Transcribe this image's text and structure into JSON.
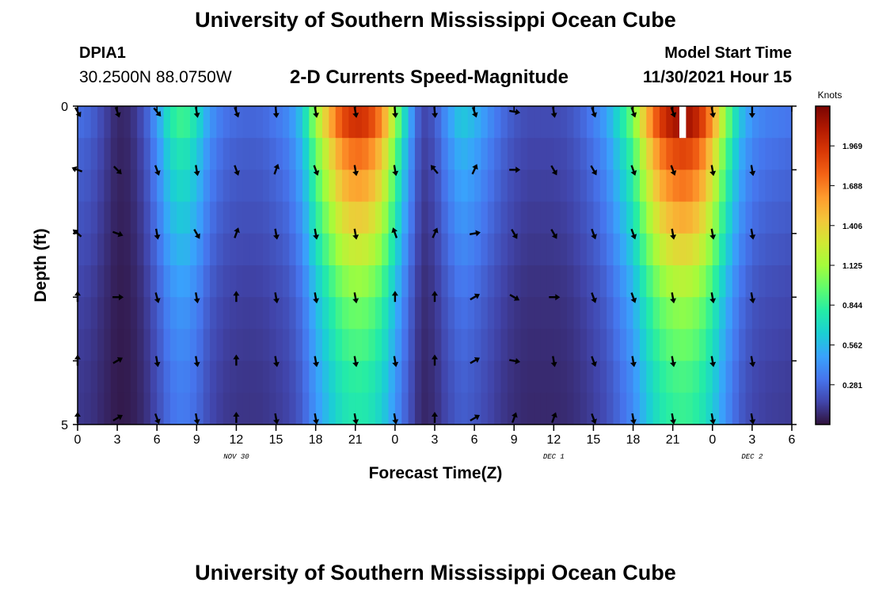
{
  "header": {
    "title": "University of Southern Mississippi Ocean Cube",
    "station_id": "DPIA1",
    "coordinates": "30.2500N  88.0750W",
    "product": "2-D Currents Speed-Magnitude",
    "model_start_label": "Model Start Time",
    "model_start_value": "11/30/2021 Hour 15"
  },
  "footer": {
    "title": "University of Southern Mississippi Ocean Cube"
  },
  "colors": {
    "scale": [
      "#30123b",
      "#4145ab",
      "#4675ed",
      "#39a2fc",
      "#1bcfd4",
      "#24eca6",
      "#61fc6c",
      "#a4fc3b",
      "#d1e834",
      "#f3c63a",
      "#fe9b2d",
      "#f36315",
      "#d93806",
      "#b11901",
      "#7a0402"
    ],
    "arrow": "#000000",
    "missing": "#ffffff"
  },
  "chart_data": {
    "type": "heatmap",
    "title": "2-D Currents Speed-Magnitude",
    "xlabel": "Forecast Time(Z)",
    "ylabel": "Depth (ft)",
    "x_tick_labels": [
      "0",
      "3",
      "6",
      "9",
      "12",
      "15",
      "18",
      "21",
      "0",
      "3",
      "6",
      "9",
      "12",
      "15",
      "18",
      "21",
      "0",
      "3",
      "6"
    ],
    "x_range_hours": [
      0,
      54
    ],
    "date_labels": [
      {
        "text": "NOV 30",
        "hour": 12
      },
      {
        "text": "DEC 1",
        "hour": 36
      },
      {
        "text": "DEC 2",
        "hour": 51
      }
    ],
    "y_tick_labels": [
      "0",
      "5"
    ],
    "y_range": [
      0,
      5
    ],
    "depth_layers": 5,
    "colorbar": {
      "title": "Knots",
      "labels": [
        "0.281",
        "0.562",
        "0.844",
        "1.125",
        "1.406",
        "1.688",
        "1.969"
      ],
      "range": [
        0,
        2.25
      ]
    },
    "speed_profile": [
      [
        0,
        0.3
      ],
      [
        1,
        0.26
      ],
      [
        2,
        0.16
      ],
      [
        3,
        0.06
      ],
      [
        4,
        0.08
      ],
      [
        5,
        0.2
      ],
      [
        6,
        0.45
      ],
      [
        7,
        0.78
      ],
      [
        8,
        0.88
      ],
      [
        9,
        0.72
      ],
      [
        10,
        0.44
      ],
      [
        11,
        0.32
      ],
      [
        12,
        0.28
      ],
      [
        13,
        0.27
      ],
      [
        14,
        0.28
      ],
      [
        15,
        0.33
      ],
      [
        16,
        0.4
      ],
      [
        17,
        0.62
      ],
      [
        18,
        1.1
      ],
      [
        19,
        1.5
      ],
      [
        20,
        1.85
      ],
      [
        21,
        1.98
      ],
      [
        22,
        1.92
      ],
      [
        23,
        1.65
      ],
      [
        24,
        1.1
      ],
      [
        25,
        0.55
      ],
      [
        26,
        0.15
      ],
      [
        27,
        0.22
      ],
      [
        28,
        0.45
      ],
      [
        29,
        0.62
      ],
      [
        30,
        0.55
      ],
      [
        31,
        0.42
      ],
      [
        32,
        0.3
      ],
      [
        33,
        0.22
      ],
      [
        34,
        0.18
      ],
      [
        35,
        0.18
      ],
      [
        36,
        0.18
      ],
      [
        37,
        0.2
      ],
      [
        38,
        0.26
      ],
      [
        39,
        0.35
      ],
      [
        40,
        0.48
      ],
      [
        41,
        0.72
      ],
      [
        42,
        1.0
      ],
      [
        43,
        1.5
      ],
      [
        44,
        1.9
      ],
      [
        45,
        2.1
      ],
      [
        46,
        2.15
      ],
      [
        47,
        2.0
      ],
      [
        48,
        1.6
      ],
      [
        49,
        1.05
      ],
      [
        50,
        0.62
      ],
      [
        51,
        0.42
      ],
      [
        52,
        0.36
      ],
      [
        53,
        0.34
      ],
      [
        54,
        0.32
      ]
    ],
    "depth_factors": [
      1.0,
      0.88,
      0.8,
      0.72,
      0.64,
      0.56,
      0.5,
      0.46,
      0.42,
      0.4
    ],
    "missing_cells": [
      {
        "hour_start": 45.5,
        "hour_end": 46.0,
        "layer": 0
      }
    ],
    "arrows": {
      "layers": [
        [
          150,
          160,
          140,
          170,
          160,
          175,
          170,
          170,
          175,
          175,
          160,
          100,
          170,
          160,
          160,
          160,
          170,
          180
        ],
        [
          290,
          135,
          160,
          170,
          160,
          20,
          160,
          170,
          170,
          320,
          25,
          90,
          150,
          150,
          160,
          160,
          170,
          170
        ],
        [
          310,
          110,
          170,
          150,
          20,
          170,
          170,
          170,
          340,
          25,
          80,
          150,
          150,
          160,
          160,
          170,
          170,
          170
        ],
        [
          0,
          90,
          165,
          170,
          0,
          170,
          170,
          170,
          0,
          0,
          60,
          120,
          90,
          160,
          160,
          170,
          170,
          170
        ],
        [
          0,
          60,
          170,
          170,
          0,
          170,
          170,
          170,
          170,
          0,
          60,
          100,
          170,
          160,
          170,
          170,
          170,
          170
        ],
        [
          0,
          60,
          160,
          170,
          0,
          170,
          170,
          170,
          170,
          0,
          60,
          20,
          20,
          160,
          170,
          170,
          170,
          170
        ]
      ],
      "start_hour": 0,
      "step_hours": 3
    }
  }
}
